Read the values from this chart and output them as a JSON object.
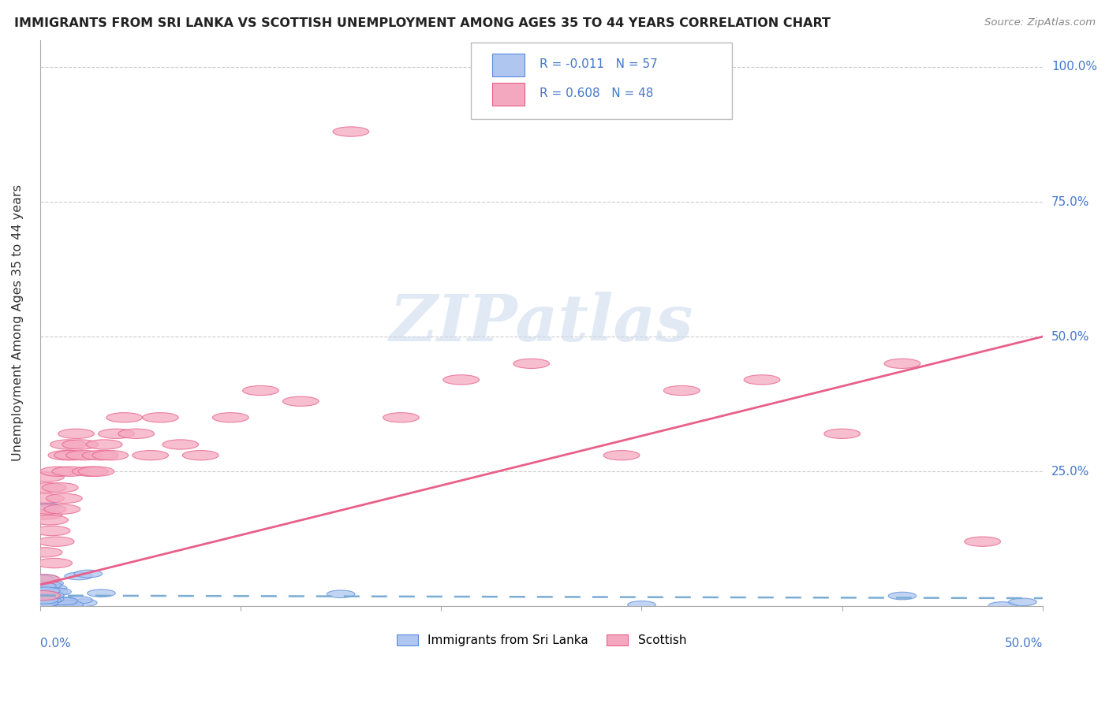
{
  "title": "IMMIGRANTS FROM SRI LANKA VS SCOTTISH UNEMPLOYMENT AMONG AGES 35 TO 44 YEARS CORRELATION CHART",
  "source": "Source: ZipAtlas.com",
  "ylabel": "Unemployment Among Ages 35 to 44 years",
  "blue_R": -0.011,
  "blue_N": 57,
  "pink_R": 0.608,
  "pink_N": 48,
  "blue_color": "#AEC6F0",
  "pink_color": "#F4A8C0",
  "blue_edge_color": "#5B8DD9",
  "pink_edge_color": "#E8608A",
  "blue_line_color": "#7BACD4",
  "pink_line_color": "#E8608A",
  "label_color": "#4477CC",
  "background_color": "#FFFFFF",
  "watermark_color": "#C8D8EC",
  "grid_color": "#CCCCCC",
  "xlim": [
    0.0,
    0.5
  ],
  "ylim": [
    0.0,
    1.05
  ],
  "ytick_positions": [
    0.0,
    0.25,
    0.5,
    0.75,
    1.0
  ],
  "ytick_labels": [
    "0.0%",
    "25.0%",
    "50.0%",
    "75.0%",
    "100.0%"
  ],
  "pink_trend_y0": 0.04,
  "pink_trend_y1": 0.5,
  "blue_trend_y0": 0.02,
  "blue_trend_y1": 0.015
}
